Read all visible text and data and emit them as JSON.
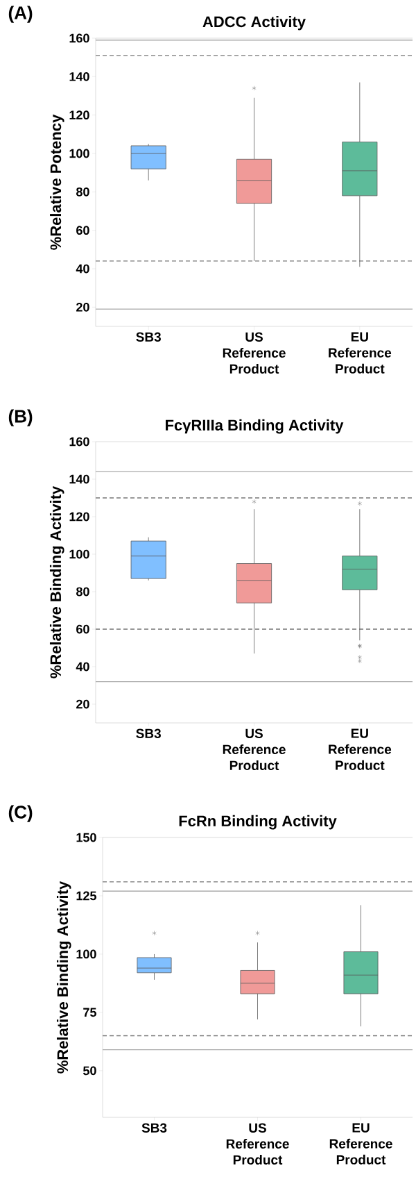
{
  "chart_data": [
    {
      "type": "box",
      "title": "ADCC Activity",
      "ylabel": "%Relative Potency",
      "annotations": [
        "(A)"
      ],
      "categories": [
        "SB3",
        "US Reference Product",
        "EU Reference Product"
      ],
      "colors": [
        "#80bfff",
        "#f09a98",
        "#5dbb9a"
      ],
      "boxes": [
        {
          "low": 86,
          "q1": 92,
          "median": 100,
          "q3": 104,
          "high": 105
        },
        {
          "low": 44,
          "q1": 74,
          "median": 86,
          "q3": 97,
          "high": 129,
          "outliers": [
            134
          ]
        },
        {
          "low": 41,
          "q1": 78,
          "median": 91,
          "q3": 106,
          "high": 137
        }
      ],
      "ylim": [
        10,
        160
      ],
      "yticks": [
        20,
        40,
        60,
        80,
        100,
        120,
        140,
        160
      ],
      "ref_lines": [
        {
          "axis": "y",
          "value": 151,
          "color": "#777777",
          "line_style": "dashed"
        },
        {
          "axis": "y",
          "value": 44,
          "color": "#777777",
          "line_style": "dashed"
        },
        {
          "axis": "y",
          "value": 159,
          "color": "#aaaaaa",
          "line_style": "solid"
        },
        {
          "axis": "y",
          "value": 19,
          "color": "#aaaaaa",
          "line_style": "solid"
        }
      ]
    },
    {
      "type": "box",
      "title": "FcγRIIIa Binding Activity",
      "ylabel": "%Relative Binding Activity",
      "annotations": [
        "(B)"
      ],
      "categories": [
        "SB3",
        "US Reference Product",
        "EU Reference Product"
      ],
      "colors": [
        "#80bfff",
        "#f09a98",
        "#5dbb9a"
      ],
      "boxes": [
        {
          "low": 86,
          "q1": 87,
          "median": 99,
          "q3": 107,
          "high": 109
        },
        {
          "low": 47,
          "q1": 74,
          "median": 86,
          "q3": 95,
          "high": 124,
          "outliers": [
            128
          ]
        },
        {
          "low": 54,
          "q1": 81,
          "median": 92,
          "q3": 99,
          "high": 124,
          "outliers": [
            127,
            51,
            51,
            45,
            43
          ]
        }
      ],
      "ylim": [
        10,
        160
      ],
      "yticks": [
        20,
        40,
        60,
        80,
        100,
        120,
        140,
        160
      ],
      "ref_lines": [
        {
          "axis": "y",
          "value": 130,
          "color": "#777777",
          "line_style": "dashed"
        },
        {
          "axis": "y",
          "value": 60,
          "color": "#777777",
          "line_style": "dashed"
        },
        {
          "axis": "y",
          "value": 144,
          "color": "#aaaaaa",
          "line_style": "solid"
        },
        {
          "axis": "y",
          "value": 32,
          "color": "#aaaaaa",
          "line_style": "solid"
        }
      ]
    },
    {
      "type": "box",
      "title": "FcRn Binding Activity",
      "ylabel": "%Relative Binding Activity",
      "annotations": [
        "(C)"
      ],
      "categories": [
        "SB3",
        "US Reference Product",
        "EU Reference Product"
      ],
      "colors": [
        "#80bfff",
        "#f09a98",
        "#5dbb9a"
      ],
      "boxes": [
        {
          "low": 89,
          "q1": 92,
          "median": 94,
          "q3": 98.5,
          "high": 100,
          "outliers": [
            109
          ]
        },
        {
          "low": 72,
          "q1": 83,
          "median": 87.5,
          "q3": 93,
          "high": 105,
          "outliers": [
            109
          ]
        },
        {
          "low": 69,
          "q1": 83,
          "median": 91,
          "q3": 101,
          "high": 121
        }
      ],
      "ylim": [
        30,
        150
      ],
      "yticks": [
        50,
        75,
        100,
        125,
        150
      ],
      "ref_lines": [
        {
          "axis": "y",
          "value": 131,
          "color": "#777777",
          "line_style": "dashed"
        },
        {
          "axis": "y",
          "value": 65,
          "color": "#777777",
          "line_style": "dashed"
        },
        {
          "axis": "y",
          "value": 127,
          "color": "#aaaaaa",
          "line_style": "solid"
        },
        {
          "axis": "y",
          "value": 59,
          "color": "#aaaaaa",
          "line_style": "solid"
        }
      ]
    }
  ]
}
